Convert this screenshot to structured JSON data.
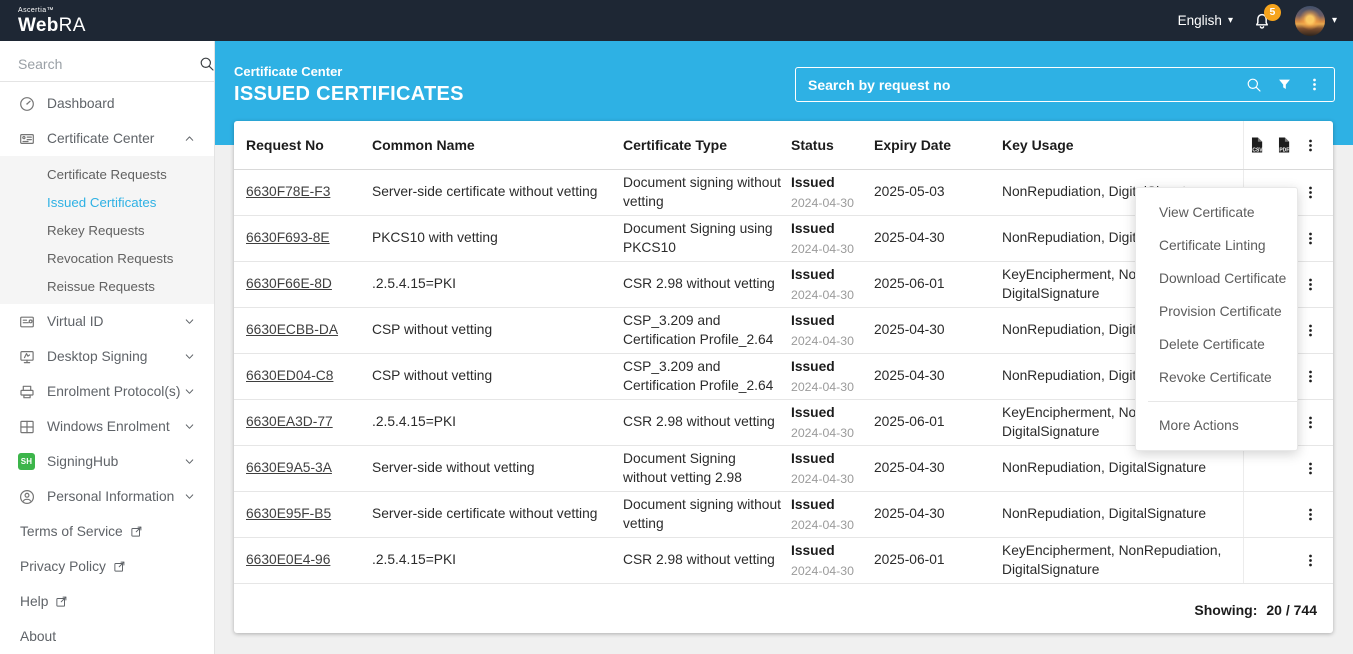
{
  "brand": {
    "company": "Ascertia™",
    "product_prefix": "Web",
    "product_suffix": "RA"
  },
  "topbar": {
    "language": "English",
    "notification_count": "5"
  },
  "sidebar": {
    "search_placeholder": "Search",
    "signinghub_badge_text": "SH",
    "nav": [
      {
        "type": "item",
        "label": "Dashboard",
        "icon": "dashboard-icon",
        "chevron": "none"
      },
      {
        "type": "item",
        "label": "Certificate Center",
        "icon": "certificate-center-icon",
        "chevron": "up"
      },
      {
        "type": "subitem",
        "label": "Certificate Requests",
        "active": false
      },
      {
        "type": "subitem",
        "label": "Issued Certificates",
        "active": true
      },
      {
        "type": "subitem",
        "label": "Rekey Requests",
        "active": false
      },
      {
        "type": "subitem",
        "label": "Revocation Requests",
        "active": false
      },
      {
        "type": "subitem",
        "label": "Reissue Requests",
        "active": false
      },
      {
        "type": "item",
        "label": "Virtual ID",
        "icon": "virtual-id-icon",
        "chevron": "down"
      },
      {
        "type": "item",
        "label": "Desktop Signing",
        "icon": "desktop-signing-icon",
        "chevron": "down"
      },
      {
        "type": "item",
        "label": "Enrolment Protocol(s)",
        "icon": "enrolment-protocols-icon",
        "chevron": "down"
      },
      {
        "type": "item",
        "label": "Windows Enrolment",
        "icon": "windows-enrolment-icon",
        "chevron": "down"
      },
      {
        "type": "item",
        "label": "SigningHub",
        "icon": "signinghub-icon",
        "chevron": "down"
      },
      {
        "type": "item",
        "label": "Personal Information",
        "icon": "personal-information-icon",
        "chevron": "down"
      },
      {
        "type": "link",
        "label": "Terms of Service",
        "external": true
      },
      {
        "type": "link",
        "label": "Privacy Policy",
        "external": true
      },
      {
        "type": "link",
        "label": "Help",
        "external": true
      },
      {
        "type": "link",
        "label": "About",
        "external": false
      }
    ]
  },
  "header": {
    "section": "Certificate Center",
    "title": "ISSUED CERTIFICATES",
    "search_placeholder": "Search by request no"
  },
  "table": {
    "columns": [
      "Request No",
      "Common Name",
      "Certificate Type",
      "Status",
      "Expiry Date",
      "Key Usage"
    ],
    "export": [
      {
        "label": "CSV"
      },
      {
        "label": "PDF"
      }
    ],
    "rows": [
      {
        "request_no": "6630F78E-F3",
        "common_name": "Server-side certificate without vetting",
        "certificate_type": "Document signing without vetting",
        "status": "Issued",
        "status_date": "2024-04-30",
        "expiry_date": "2025-05-03",
        "key_usage": "NonRepudiation, DigitalSignature"
      },
      {
        "request_no": "6630F693-8E",
        "common_name": "PKCS10 with vetting",
        "certificate_type": "Document Signing using PKCS10",
        "status": "Issued",
        "status_date": "2024-04-30",
        "expiry_date": "2025-04-30",
        "key_usage": "NonRepudiation, DigitalSignature"
      },
      {
        "request_no": "6630F66E-8D",
        "common_name": ".2.5.4.15=PKI",
        "certificate_type": "CSR 2.98 without vetting",
        "status": "Issued",
        "status_date": "2024-04-30",
        "expiry_date": "2025-06-01",
        "key_usage": "KeyEncipherment, NonRepudiation, DigitalSignature"
      },
      {
        "request_no": "6630ECBB-DA",
        "common_name": "CSP without vetting",
        "certificate_type": "CSP_3.209 and Certification Profile_2.64",
        "status": "Issued",
        "status_date": "2024-04-30",
        "expiry_date": "2025-04-30",
        "key_usage": "NonRepudiation, DigitalSignature"
      },
      {
        "request_no": "6630ED04-C8",
        "common_name": "CSP without vetting",
        "certificate_type": "CSP_3.209 and Certification Profile_2.64",
        "status": "Issued",
        "status_date": "2024-04-30",
        "expiry_date": "2025-04-30",
        "key_usage": "NonRepudiation, DigitalSignature"
      },
      {
        "request_no": "6630EA3D-77",
        "common_name": ".2.5.4.15=PKI",
        "certificate_type": "CSR 2.98 without vetting",
        "status": "Issued",
        "status_date": "2024-04-30",
        "expiry_date": "2025-06-01",
        "key_usage": "KeyEncipherment, NonRepudiation, DigitalSignature"
      },
      {
        "request_no": "6630E9A5-3A",
        "common_name": "Server-side without vetting",
        "certificate_type": "Document Signing without vetting 2.98",
        "status": "Issued",
        "status_date": "2024-04-30",
        "expiry_date": "2025-04-30",
        "key_usage": "NonRepudiation, DigitalSignature"
      },
      {
        "request_no": "6630E95F-B5",
        "common_name": "Server-side certificate without vetting",
        "certificate_type": "Document signing without vetting",
        "status": "Issued",
        "status_date": "2024-04-30",
        "expiry_date": "2025-04-30",
        "key_usage": "NonRepudiation, DigitalSignature"
      },
      {
        "request_no": "6630E0E4-96",
        "common_name": ".2.5.4.15=PKI",
        "certificate_type": "CSR 2.98 without vetting",
        "status": "Issued",
        "status_date": "2024-04-30",
        "expiry_date": "2025-06-01",
        "key_usage": "KeyEncipherment, NonRepudiation, DigitalSignature"
      }
    ],
    "showing_label": "Showing:",
    "showing_value": "20 / 744"
  },
  "context_menu": {
    "items": [
      "View Certificate",
      "Certificate Linting",
      "Download Certificate",
      "Provision Certificate",
      "Delete Certificate",
      "Revoke Certificate"
    ],
    "more_label": "More Actions"
  },
  "colors": {
    "accent_blue": "#2eb1e4",
    "topbar_bg": "#1e2734",
    "badge_orange": "#f6a41d",
    "signinghub_green": "#3cb54a"
  }
}
